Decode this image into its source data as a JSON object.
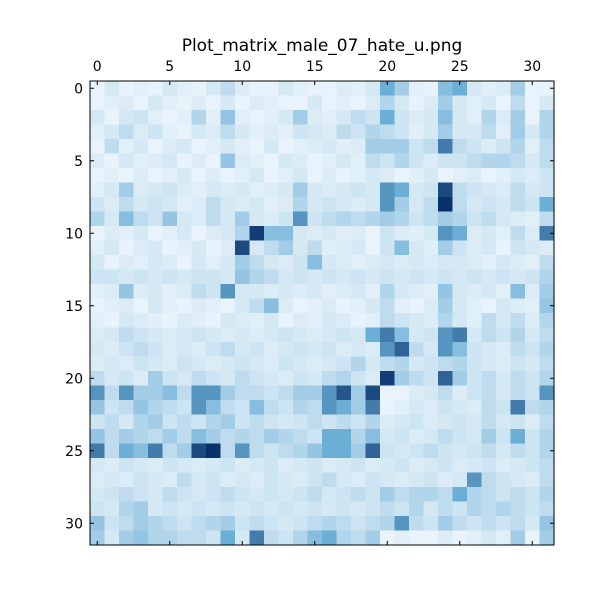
{
  "chart_data": {
    "type": "heatmap",
    "title": "Plot_matrix_male_07_hate_u.png",
    "colormap": "Blues",
    "colors": {
      "low": "#f7fbff",
      "mid": "#6baed6",
      "high": "#08306b",
      "frame": "#000000"
    },
    "rows": 32,
    "cols": 32,
    "value_range": [
      0,
      1
    ],
    "x_ticks": [
      0,
      5,
      10,
      15,
      20,
      25,
      30
    ],
    "y_ticks": [
      0,
      5,
      10,
      15,
      20,
      25,
      30
    ],
    "x_axis_position": "top",
    "grid": false,
    "values": [
      [
        0.05,
        0.12,
        0.05,
        0.08,
        0.05,
        0.12,
        0.08,
        0.05,
        0.12,
        0.2,
        0.1,
        0.05,
        0.05,
        0.12,
        0.08,
        0.05,
        0.05,
        0.1,
        0.08,
        0.12,
        0.5,
        0.3,
        0.08,
        0.05,
        0.4,
        0.5,
        0.12,
        0.08,
        0.1,
        0.3,
        0.05,
        0.05
      ],
      [
        0.05,
        0.08,
        0.1,
        0.05,
        0.12,
        0.08,
        0.05,
        0.1,
        0.05,
        0.12,
        0.05,
        0.1,
        0.08,
        0.05,
        0.05,
        0.12,
        0.05,
        0.08,
        0.05,
        0.1,
        0.25,
        0.12,
        0.05,
        0.1,
        0.3,
        0.12,
        0.08,
        0.12,
        0.05,
        0.2,
        0.05,
        0.12
      ],
      [
        0.12,
        0.05,
        0.12,
        0.15,
        0.08,
        0.05,
        0.08,
        0.25,
        0.08,
        0.35,
        0.08,
        0.05,
        0.08,
        0.12,
        0.3,
        0.1,
        0.08,
        0.12,
        0.2,
        0.15,
        0.5,
        0.15,
        0.1,
        0.12,
        0.4,
        0.12,
        0.08,
        0.25,
        0.1,
        0.3,
        0.05,
        0.25
      ],
      [
        0.08,
        0.12,
        0.2,
        0.1,
        0.15,
        0.08,
        0.05,
        0.12,
        0.1,
        0.2,
        0.12,
        0.08,
        0.1,
        0.08,
        0.15,
        0.12,
        0.1,
        0.2,
        0.15,
        0.25,
        0.2,
        0.15,
        0.08,
        0.12,
        0.3,
        0.12,
        0.12,
        0.2,
        0.08,
        0.3,
        0.12,
        0.25
      ],
      [
        0.05,
        0.2,
        0.08,
        0.12,
        0.05,
        0.1,
        0.12,
        0.05,
        0.08,
        0.12,
        0.08,
        0.05,
        0.12,
        0.05,
        0.08,
        0.1,
        0.12,
        0.08,
        0.1,
        0.3,
        0.3,
        0.3,
        0.15,
        0.2,
        0.7,
        0.2,
        0.15,
        0.1,
        0.15,
        0.25,
        0.08,
        0.2
      ],
      [
        0.1,
        0.05,
        0.12,
        0.08,
        0.1,
        0.12,
        0.05,
        0.1,
        0.05,
        0.35,
        0.1,
        0.08,
        0.05,
        0.12,
        0.1,
        0.05,
        0.08,
        0.12,
        0.08,
        0.2,
        0.15,
        0.25,
        0.15,
        0.1,
        0.15,
        0.15,
        0.2,
        0.25,
        0.25,
        0.2,
        0.12,
        0.2
      ],
      [
        0.05,
        0.08,
        0.05,
        0.1,
        0.05,
        0.08,
        0.12,
        0.05,
        0.1,
        0.05,
        0.08,
        0.12,
        0.05,
        0.08,
        0.12,
        0.05,
        0.1,
        0.05,
        0.08,
        0.12,
        0.1,
        0.05,
        0.08,
        0.12,
        0.05,
        0.08,
        0.1,
        0.05,
        0.08,
        0.12,
        0.1,
        0.15
      ],
      [
        0.08,
        0.12,
        0.3,
        0.1,
        0.12,
        0.15,
        0.1,
        0.08,
        0.12,
        0.1,
        0.12,
        0.08,
        0.1,
        0.12,
        0.3,
        0.12,
        0.1,
        0.12,
        0.15,
        0.12,
        0.6,
        0.5,
        0.12,
        0.15,
        0.9,
        0.2,
        0.15,
        0.12,
        0.1,
        0.2,
        0.12,
        0.15
      ],
      [
        0.15,
        0.1,
        0.2,
        0.12,
        0.15,
        0.12,
        0.08,
        0.1,
        0.2,
        0.12,
        0.1,
        0.12,
        0.08,
        0.1,
        0.25,
        0.12,
        0.15,
        0.12,
        0.1,
        0.12,
        0.6,
        0.3,
        0.12,
        0.2,
        1.0,
        0.2,
        0.12,
        0.15,
        0.12,
        0.2,
        0.15,
        0.5
      ],
      [
        0.25,
        0.12,
        0.4,
        0.2,
        0.15,
        0.35,
        0.12,
        0.1,
        0.2,
        0.12,
        0.3,
        0.12,
        0.1,
        0.15,
        0.6,
        0.15,
        0.2,
        0.25,
        0.2,
        0.25,
        0.3,
        0.25,
        0.15,
        0.2,
        0.3,
        0.25,
        0.15,
        0.2,
        0.12,
        0.1,
        0.08,
        0.2
      ],
      [
        0.05,
        0.1,
        0.08,
        0.12,
        0.05,
        0.08,
        0.12,
        0.05,
        0.1,
        0.12,
        0.25,
        0.95,
        0.4,
        0.4,
        0.12,
        0.1,
        0.12,
        0.08,
        0.1,
        0.05,
        0.15,
        0.1,
        0.08,
        0.12,
        0.6,
        0.5,
        0.1,
        0.12,
        0.08,
        0.2,
        0.1,
        0.7
      ],
      [
        0.08,
        0.12,
        0.05,
        0.1,
        0.12,
        0.05,
        0.08,
        0.12,
        0.05,
        0.1,
        0.9,
        0.12,
        0.2,
        0.3,
        0.12,
        0.2,
        0.08,
        0.1,
        0.12,
        0.05,
        0.15,
        0.4,
        0.12,
        0.08,
        0.3,
        0.15,
        0.1,
        0.12,
        0.05,
        0.15,
        0.12,
        0.1
      ],
      [
        0.12,
        0.05,
        0.1,
        0.08,
        0.12,
        0.1,
        0.05,
        0.12,
        0.08,
        0.12,
        0.3,
        0.2,
        0.12,
        0.1,
        0.15,
        0.4,
        0.12,
        0.1,
        0.08,
        0.1,
        0.12,
        0.1,
        0.12,
        0.1,
        0.12,
        0.12,
        0.1,
        0.08,
        0.12,
        0.1,
        0.08,
        0.2
      ],
      [
        0.15,
        0.15,
        0.12,
        0.15,
        0.12,
        0.15,
        0.12,
        0.15,
        0.15,
        0.12,
        0.35,
        0.25,
        0.2,
        0.12,
        0.15,
        0.12,
        0.15,
        0.12,
        0.15,
        0.12,
        0.15,
        0.12,
        0.15,
        0.12,
        0.15,
        0.12,
        0.15,
        0.12,
        0.15,
        0.12,
        0.15,
        0.25
      ],
      [
        0.08,
        0.1,
        0.35,
        0.1,
        0.12,
        0.08,
        0.1,
        0.2,
        0.15,
        0.6,
        0.12,
        0.12,
        0.1,
        0.12,
        0.1,
        0.12,
        0.08,
        0.1,
        0.12,
        0.08,
        0.25,
        0.12,
        0.1,
        0.08,
        0.35,
        0.12,
        0.1,
        0.12,
        0.08,
        0.4,
        0.1,
        0.3
      ],
      [
        0.05,
        0.08,
        0.1,
        0.05,
        0.12,
        0.08,
        0.05,
        0.1,
        0.08,
        0.05,
        0.12,
        0.2,
        0.4,
        0.1,
        0.05,
        0.08,
        0.1,
        0.05,
        0.08,
        0.12,
        0.2,
        0.08,
        0.05,
        0.1,
        0.3,
        0.12,
        0.08,
        0.05,
        0.12,
        0.1,
        0.08,
        0.35
      ],
      [
        0.08,
        0.05,
        0.12,
        0.1,
        0.08,
        0.05,
        0.1,
        0.08,
        0.05,
        0.12,
        0.1,
        0.08,
        0.12,
        0.05,
        0.1,
        0.08,
        0.12,
        0.1,
        0.05,
        0.08,
        0.2,
        0.15,
        0.12,
        0.1,
        0.25,
        0.12,
        0.08,
        0.2,
        0.12,
        0.2,
        0.1,
        0.25
      ],
      [
        0.1,
        0.12,
        0.2,
        0.15,
        0.12,
        0.1,
        0.12,
        0.15,
        0.12,
        0.1,
        0.12,
        0.1,
        0.12,
        0.15,
        0.12,
        0.1,
        0.12,
        0.15,
        0.12,
        0.5,
        0.7,
        0.4,
        0.12,
        0.15,
        0.6,
        0.7,
        0.12,
        0.2,
        0.15,
        0.25,
        0.12,
        0.2
      ],
      [
        0.12,
        0.1,
        0.15,
        0.2,
        0.15,
        0.1,
        0.12,
        0.1,
        0.15,
        0.2,
        0.12,
        0.15,
        0.1,
        0.12,
        0.15,
        0.12,
        0.15,
        0.1,
        0.12,
        0.1,
        0.6,
        0.8,
        0.2,
        0.12,
        0.6,
        0.4,
        0.15,
        0.12,
        0.1,
        0.2,
        0.15,
        0.25
      ],
      [
        0.1,
        0.12,
        0.1,
        0.15,
        0.12,
        0.1,
        0.15,
        0.12,
        0.1,
        0.12,
        0.15,
        0.12,
        0.1,
        0.15,
        0.12,
        0.1,
        0.12,
        0.15,
        0.25,
        0.12,
        0.2,
        0.25,
        0.12,
        0.15,
        0.2,
        0.25,
        0.15,
        0.12,
        0.1,
        0.15,
        0.12,
        0.2
      ],
      [
        0.2,
        0.12,
        0.15,
        0.1,
        0.3,
        0.15,
        0.12,
        0.2,
        0.15,
        0.12,
        0.2,
        0.15,
        0.12,
        0.1,
        0.15,
        0.12,
        0.2,
        0.25,
        0.15,
        0.1,
        0.95,
        0.3,
        0.2,
        0.15,
        0.8,
        0.3,
        0.15,
        0.2,
        0.12,
        0.2,
        0.15,
        0.25
      ],
      [
        0.6,
        0.2,
        0.6,
        0.3,
        0.3,
        0.4,
        0.2,
        0.6,
        0.6,
        0.3,
        0.2,
        0.2,
        0.15,
        0.2,
        0.3,
        0.3,
        0.6,
        0.85,
        0.3,
        0.9,
        0.05,
        0.05,
        0.1,
        0.12,
        0.2,
        0.1,
        0.15,
        0.2,
        0.12,
        0.2,
        0.15,
        0.6
      ],
      [
        0.35,
        0.15,
        0.2,
        0.35,
        0.25,
        0.2,
        0.15,
        0.6,
        0.4,
        0.2,
        0.15,
        0.4,
        0.2,
        0.15,
        0.25,
        0.2,
        0.6,
        0.5,
        0.3,
        0.7,
        0.05,
        0.08,
        0.12,
        0.1,
        0.15,
        0.12,
        0.1,
        0.2,
        0.15,
        0.7,
        0.2,
        0.25
      ],
      [
        0.15,
        0.2,
        0.12,
        0.25,
        0.3,
        0.15,
        0.2,
        0.15,
        0.25,
        0.3,
        0.15,
        0.2,
        0.15,
        0.12,
        0.15,
        0.2,
        0.15,
        0.2,
        0.15,
        0.25,
        0.1,
        0.12,
        0.15,
        0.1,
        0.12,
        0.15,
        0.12,
        0.2,
        0.12,
        0.15,
        0.1,
        0.2
      ],
      [
        0.35,
        0.2,
        0.3,
        0.25,
        0.2,
        0.3,
        0.2,
        0.4,
        0.3,
        0.2,
        0.25,
        0.2,
        0.3,
        0.25,
        0.2,
        0.15,
        0.5,
        0.5,
        0.25,
        0.4,
        0.12,
        0.15,
        0.1,
        0.12,
        0.2,
        0.15,
        0.12,
        0.3,
        0.15,
        0.5,
        0.15,
        0.25
      ],
      [
        0.7,
        0.2,
        0.5,
        0.4,
        0.7,
        0.2,
        0.3,
        0.9,
        1.0,
        0.2,
        0.6,
        0.2,
        0.15,
        0.2,
        0.25,
        0.35,
        0.5,
        0.5,
        0.3,
        0.8,
        0.15,
        0.12,
        0.15,
        0.2,
        0.15,
        0.12,
        0.15,
        0.2,
        0.12,
        0.2,
        0.15,
        0.25
      ],
      [
        0.12,
        0.1,
        0.15,
        0.12,
        0.1,
        0.15,
        0.12,
        0.1,
        0.12,
        0.15,
        0.1,
        0.12,
        0.15,
        0.1,
        0.12,
        0.15,
        0.1,
        0.12,
        0.15,
        0.1,
        0.12,
        0.15,
        0.1,
        0.12,
        0.15,
        0.1,
        0.12,
        0.15,
        0.1,
        0.12,
        0.15,
        0.2
      ],
      [
        0.1,
        0.12,
        0.1,
        0.15,
        0.12,
        0.1,
        0.2,
        0.12,
        0.15,
        0.1,
        0.12,
        0.1,
        0.15,
        0.12,
        0.1,
        0.15,
        0.2,
        0.12,
        0.1,
        0.15,
        0.12,
        0.1,
        0.12,
        0.15,
        0.1,
        0.12,
        0.6,
        0.2,
        0.15,
        0.12,
        0.1,
        0.2
      ],
      [
        0.12,
        0.15,
        0.2,
        0.15,
        0.12,
        0.2,
        0.15,
        0.12,
        0.15,
        0.2,
        0.15,
        0.12,
        0.15,
        0.12,
        0.15,
        0.2,
        0.12,
        0.15,
        0.2,
        0.15,
        0.3,
        0.2,
        0.25,
        0.25,
        0.2,
        0.5,
        0.25,
        0.2,
        0.15,
        0.2,
        0.15,
        0.25
      ],
      [
        0.15,
        0.12,
        0.25,
        0.3,
        0.12,
        0.15,
        0.12,
        0.15,
        0.12,
        0.15,
        0.12,
        0.15,
        0.12,
        0.15,
        0.12,
        0.15,
        0.12,
        0.15,
        0.12,
        0.15,
        0.2,
        0.15,
        0.25,
        0.12,
        0.2,
        0.15,
        0.25,
        0.2,
        0.25,
        0.2,
        0.15,
        0.2
      ],
      [
        0.35,
        0.15,
        0.2,
        0.3,
        0.25,
        0.2,
        0.15,
        0.2,
        0.25,
        0.3,
        0.15,
        0.2,
        0.15,
        0.12,
        0.15,
        0.2,
        0.25,
        0.2,
        0.15,
        0.2,
        0.25,
        0.6,
        0.2,
        0.15,
        0.3,
        0.2,
        0.15,
        0.2,
        0.15,
        0.2,
        0.12,
        0.35
      ],
      [
        0.3,
        0.12,
        0.3,
        0.35,
        0.25,
        0.25,
        0.2,
        0.2,
        0.15,
        0.5,
        0.12,
        0.7,
        0.2,
        0.15,
        0.25,
        0.4,
        0.5,
        0.25,
        0.2,
        0.3,
        0.05,
        0.08,
        0.05,
        0.05,
        0.1,
        0.05,
        0.08,
        0.12,
        0.08,
        0.3,
        0.05,
        0.3
      ]
    ]
  }
}
